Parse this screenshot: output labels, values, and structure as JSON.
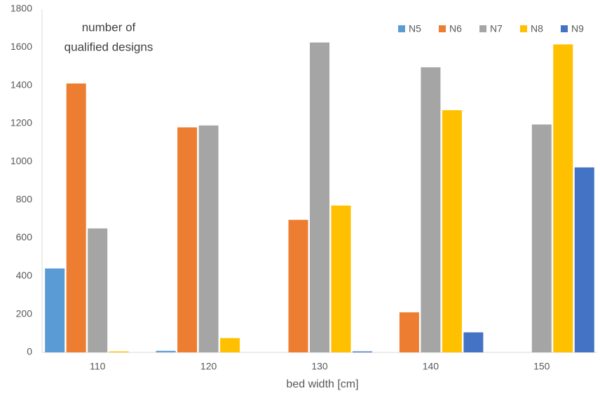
{
  "chart_data": {
    "type": "bar",
    "annotations": [
      "number of",
      "qualified designs"
    ],
    "x_label": "bed width [cm]",
    "categories": [
      "110",
      "120",
      "130",
      "140",
      "150"
    ],
    "series": [
      {
        "name": "N5",
        "color": "#5b9bd5",
        "values": [
          440,
          8,
          0,
          0,
          0
        ]
      },
      {
        "name": "N6",
        "color": "#ed7d31",
        "values": [
          1410,
          1180,
          695,
          210,
          0
        ]
      },
      {
        "name": "N7",
        "color": "#a5a5a5",
        "values": [
          650,
          1190,
          1625,
          1495,
          1195
        ]
      },
      {
        "name": "N8",
        "color": "#ffc000",
        "values": [
          5,
          75,
          770,
          1270,
          1615
        ]
      },
      {
        "name": "N9",
        "color": "#4472c4",
        "values": [
          0,
          0,
          5,
          105,
          970
        ]
      }
    ],
    "ylim": [
      0,
      1800
    ],
    "yticks": [
      0,
      200,
      400,
      600,
      800,
      1000,
      1200,
      1400,
      1600,
      1800
    ],
    "grid": false,
    "legend": "top-right"
  }
}
